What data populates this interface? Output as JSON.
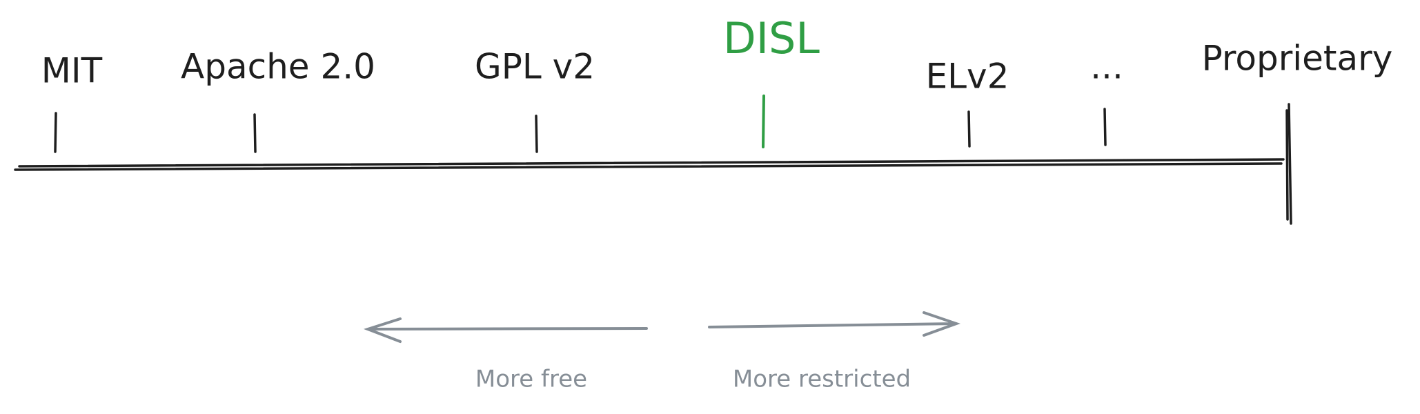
{
  "labels": [
    "MIT",
    "Apache 2.0",
    "GPL v2",
    "DISL",
    "ELv2",
    "...",
    "Proprietary"
  ],
  "arrows": [
    "More free",
    "More restricted"
  ]
}
